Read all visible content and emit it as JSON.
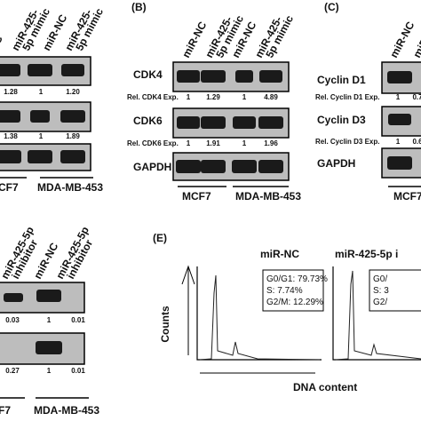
{
  "panel_a": {
    "columns": [
      [
        "NC"
      ],
      [
        "miR-425-",
        "5p mimic"
      ],
      [
        "miR-NC"
      ],
      [
        "miR-425-",
        "5p mimic"
      ]
    ],
    "rows": [
      [
        "1.28",
        "1",
        "1.20"
      ],
      [
        "1.38",
        "1",
        "1.89"
      ]
    ],
    "groups": [
      "CF7",
      "MDA-MB-453"
    ]
  },
  "panel_b": {
    "label": "(B)",
    "columns": [
      [
        "miR-NC"
      ],
      [
        "miR-425-",
        "5p mimic"
      ],
      [
        "miR-NC"
      ],
      [
        "miR-425-",
        "5p mimic"
      ]
    ],
    "blots": [
      {
        "name": "CDK4",
        "rel": "Rel. CDK4 Exp.",
        "values": [
          "1",
          "1.29",
          "1",
          "4.89"
        ]
      },
      {
        "name": "CDK6",
        "rel": "Rel. CDK6 Exp.",
        "values": [
          "1",
          "1.91",
          "1",
          "1.96"
        ]
      },
      {
        "name": "GAPDH"
      }
    ],
    "groups": [
      "MCF7",
      "MDA-MB-453"
    ]
  },
  "panel_c": {
    "label": "(C)",
    "columns": [
      [
        "miR-NC"
      ],
      [
        "miR-"
      ]
    ],
    "blots": [
      {
        "name": "Cyclin D1",
        "rel": "Rel. Cyclin D1 Exp.",
        "values": [
          "1",
          "0.7"
        ]
      },
      {
        "name": "Cyclin D3",
        "rel": "Rel. Cyclin D3 Exp.",
        "values": [
          "1",
          "0.6"
        ]
      },
      {
        "name": "GAPDH"
      }
    ],
    "groups": [
      "MCF7"
    ]
  },
  "panel_d": {
    "columns": [
      [
        "miR-425-5p",
        "inhibitor"
      ],
      [
        "miR-NC"
      ],
      [
        "miR-425-5p",
        "inhibitor"
      ]
    ],
    "rows": [
      [
        "0.03",
        "1",
        "0.01"
      ],
      [
        "0.27",
        "1",
        "0.01"
      ]
    ],
    "groups": [
      "F7",
      "MDA-MB-453"
    ]
  },
  "panel_e": {
    "label": "(E)",
    "y_axis": "Counts",
    "x_axis": "DNA content",
    "plots": [
      {
        "title": "miR-NC",
        "stats": [
          "G0/G1: 79.73%",
          "S: 7.74%",
          "G2/M: 12.29%"
        ]
      },
      {
        "title": "miR-425-5p i",
        "stats": [
          "G0/",
          "S: 3",
          "G2/"
        ]
      }
    ]
  }
}
